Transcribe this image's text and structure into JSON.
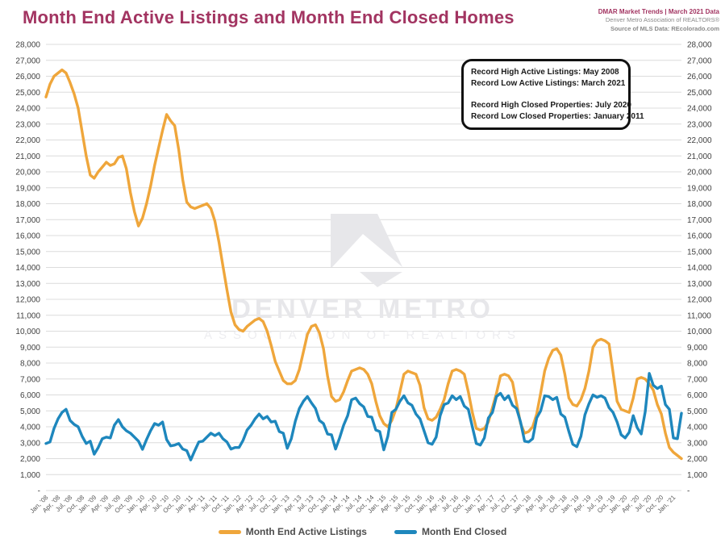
{
  "header": {
    "title": "Month End Active Listings and Month End Closed Homes",
    "meta_line1": "DMAR Market Trends | March 2021 Data",
    "meta_line2": "Denver Metro Association of REALTORS®",
    "meta_line3": "Source of MLS Data: REcolorado.com"
  },
  "annotation_box": {
    "lines": [
      "Record High Active Listings: May 2008",
      "Record Low Active Listings: March 2021",
      "",
      "Record High Closed Properties: July 2020",
      "Record Low Closed Properties: January 2011"
    ]
  },
  "watermark": {
    "line1": "DENVER METRO",
    "line2": "ASSOCIATION OF REALTORS",
    "color": "#E7E7EA"
  },
  "legend": [
    {
      "label": "Month End Active Listings",
      "color": "#EFA63B"
    },
    {
      "label": "Month End Closed",
      "color": "#1E87BD"
    }
  ],
  "colors": {
    "brand_magenta": "#A23461",
    "gridline": "#DCDCDC",
    "axis_text": "#404040",
    "x_tick_text": "#595959",
    "active_line": "#EFA63B",
    "closed_line": "#1E87BD"
  },
  "chart_data": {
    "type": "line",
    "title": "Month End Active Listings and Month End Closed Homes",
    "x_start": "2008-01",
    "x_end": "2021-03",
    "months_per_point": 1,
    "ylim": [
      0,
      28000
    ],
    "y_step": 1000,
    "y_zero_label": "-",
    "grid": true,
    "legend_position": "bottom",
    "y_axis_sides": "both",
    "x_tick_labels": [
      "Jan, '08",
      "Apr, '08",
      "Jul, '08",
      "Oct, '08",
      "Jan, '09",
      "Apr, '09",
      "Jul, '09",
      "Oct, '09",
      "Jan, '10",
      "Apr, '10",
      "Jul, '10",
      "Oct, '10",
      "Jan, '11",
      "Apr, '11",
      "Jul, '11",
      "Oct, '11",
      "Jan, '12",
      "Apr, '12",
      "Jul, '12",
      "Oct, '12",
      "Jan, '13",
      "Apr, '13",
      "Jul, '13",
      "Oct, '13",
      "Jan, '14",
      "Apr, '14",
      "Jul, '14",
      "Oct, '14",
      "Jan, '15",
      "Apr, '15",
      "Jul, '15",
      "Oct, '15",
      "Jan, '16",
      "Apr, '16",
      "Jul, '16",
      "Oct, '16",
      "Jan, '17",
      "Apr, '17",
      "Jul, '17",
      "Oct, '17",
      "Jan, '18",
      "Apr, '18",
      "Jul, '18",
      "Oct, '18",
      "Jan, '19",
      "Apr, '19",
      "Jul, '19",
      "Oct, '19",
      "Jan, '20",
      "Apr, '20",
      "Jul, '20",
      "Oct, '20",
      "Jan, '21"
    ],
    "x_tick_every_n_months": 3,
    "series": [
      {
        "name": "Month End Active Listings",
        "color": "#EFA63B",
        "values": [
          24700,
          25500,
          26000,
          26200,
          26400,
          26200,
          25600,
          24900,
          24000,
          22500,
          21000,
          19800,
          19600,
          20000,
          20300,
          20600,
          20400,
          20500,
          20900,
          21000,
          20200,
          18700,
          17500,
          16600,
          17100,
          18000,
          19100,
          20400,
          21500,
          22600,
          23600,
          23200,
          22900,
          21400,
          19500,
          18100,
          17800,
          17700,
          17800,
          17900,
          18000,
          17700,
          16900,
          15600,
          14100,
          12600,
          11200,
          10400,
          10100,
          10000,
          10300,
          10500,
          10700,
          10800,
          10600,
          10000,
          9100,
          8100,
          7500,
          6900,
          6700,
          6700,
          6900,
          7600,
          8700,
          9800,
          10300,
          10400,
          9900,
          8900,
          7200,
          5900,
          5600,
          5700,
          6200,
          6900,
          7500,
          7600,
          7700,
          7600,
          7300,
          6700,
          5600,
          4700,
          4200,
          4000,
          4400,
          5100,
          6200,
          7300,
          7500,
          7400,
          7300,
          6600,
          5200,
          4500,
          4400,
          4600,
          5100,
          5700,
          6700,
          7500,
          7600,
          7500,
          7300,
          6200,
          4900,
          3900,
          3800,
          3900,
          4300,
          5200,
          6100,
          7200,
          7300,
          7200,
          6800,
          5500,
          4200,
          3600,
          3700,
          4000,
          4800,
          6100,
          7500,
          8300,
          8800,
          8900,
          8500,
          7300,
          5800,
          5400,
          5300,
          5700,
          6400,
          7500,
          9000,
          9400,
          9500,
          9400,
          9200,
          7400,
          5600,
          5100,
          5000,
          4900,
          5800,
          7000,
          7100,
          7000,
          6700,
          6300,
          5400,
          4800,
          3600,
          2700,
          2400,
          2200,
          2000
        ]
      },
      {
        "name": "Month End Closed",
        "color": "#1E87BD",
        "values": [
          2950,
          3050,
          3900,
          4500,
          4900,
          5100,
          4400,
          4150,
          4000,
          3400,
          2950,
          3100,
          2280,
          2700,
          3250,
          3350,
          3300,
          4100,
          4450,
          4000,
          3750,
          3600,
          3350,
          3100,
          2580,
          3200,
          3750,
          4200,
          4100,
          4300,
          3200,
          2800,
          2850,
          2950,
          2600,
          2500,
          1920,
          2500,
          3050,
          3100,
          3350,
          3600,
          3450,
          3600,
          3250,
          3050,
          2600,
          2700,
          2700,
          3150,
          3800,
          4100,
          4500,
          4800,
          4500,
          4650,
          4300,
          4350,
          3700,
          3600,
          2650,
          3250,
          4350,
          5150,
          5600,
          5900,
          5500,
          5150,
          4400,
          4200,
          3550,
          3500,
          2600,
          3300,
          4100,
          4700,
          5700,
          5800,
          5450,
          5250,
          4650,
          4600,
          3800,
          3700,
          2550,
          3400,
          4900,
          5100,
          5600,
          5950,
          5500,
          5350,
          4800,
          4500,
          3750,
          3000,
          2900,
          3350,
          4700,
          5400,
          5500,
          5950,
          5700,
          5900,
          5300,
          5100,
          4000,
          2950,
          2850,
          3300,
          4550,
          4900,
          5900,
          6100,
          5700,
          5950,
          5350,
          5150,
          4300,
          3100,
          3050,
          3250,
          4550,
          5000,
          5950,
          5900,
          5700,
          5850,
          4800,
          4600,
          3700,
          2900,
          2750,
          3400,
          4750,
          5450,
          6000,
          5850,
          5950,
          5800,
          5200,
          4900,
          4300,
          3500,
          3300,
          3650,
          4700,
          3950,
          3550,
          4950,
          7350,
          6600,
          6400,
          6550,
          5400,
          5100,
          3300,
          3250,
          4850
        ]
      }
    ]
  }
}
